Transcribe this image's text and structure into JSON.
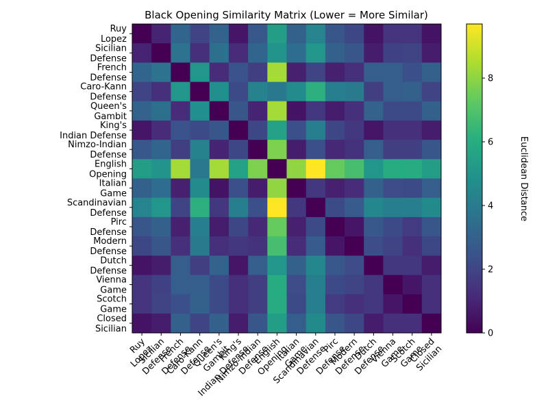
{
  "chart_data": {
    "type": "heatmap",
    "title": "Black Opening Similarity Matrix (Lower = More Similar)",
    "labels": [
      "Ruy Lopez",
      "Sicilian Defense",
      "French Defense",
      "Caro-Kann Defense",
      "Queen's Gambit",
      "King's Indian Defense",
      "Nimzo-Indian Defense",
      "English Opening",
      "Italian Game",
      "Scandinavian Defense",
      "Pirc Defense",
      "Modern Defense",
      "Dutch Defense",
      "Vienna Game",
      "Scotch Game",
      "Closed Sicilian"
    ],
    "matrix": [
      [
        0.0,
        1.0,
        3.2,
        2.0,
        3.1,
        0.6,
        2.7,
        5.4,
        3.0,
        4.4,
        2.6,
        2.1,
        0.5,
        1.5,
        1.5,
        0.5
      ],
      [
        1.0,
        0.0,
        3.7,
        1.3,
        3.6,
        1.2,
        3.2,
        5.0,
        3.5,
        5.1,
        3.0,
        2.6,
        0.8,
        1.9,
        2.0,
        0.8
      ],
      [
        3.2,
        3.7,
        0.0,
        5.1,
        1.2,
        2.5,
        1.8,
        8.4,
        0.9,
        2.0,
        0.9,
        1.3,
        2.9,
        2.9,
        2.4,
        3.0
      ],
      [
        2.0,
        1.3,
        5.1,
        0.0,
        4.8,
        2.2,
        4.3,
        3.9,
        4.7,
        6.2,
        4.2,
        4.0,
        1.8,
        2.9,
        3.0,
        2.0
      ],
      [
        3.1,
        3.6,
        1.2,
        4.8,
        0.0,
        2.6,
        1.0,
        8.4,
        0.5,
        1.6,
        0.8,
        1.3,
        3.1,
        2.2,
        2.2,
        3.0
      ],
      [
        0.6,
        1.2,
        2.5,
        2.2,
        2.6,
        0.0,
        2.1,
        5.6,
        2.4,
        4.2,
        2.1,
        1.6,
        0.6,
        1.3,
        1.3,
        0.8
      ],
      [
        2.7,
        3.2,
        1.8,
        4.3,
        1.0,
        2.1,
        0.0,
        7.8,
        0.8,
        2.4,
        1.1,
        1.4,
        2.9,
        1.8,
        1.8,
        2.6
      ],
      [
        5.4,
        5.0,
        8.4,
        3.9,
        8.4,
        5.6,
        7.8,
        0.0,
        8.1,
        9.7,
        7.4,
        6.8,
        5.1,
        6.0,
        6.0,
        5.4
      ],
      [
        3.0,
        3.5,
        0.9,
        4.7,
        0.5,
        2.4,
        0.8,
        8.1,
        0.0,
        1.6,
        0.9,
        1.2,
        3.0,
        2.3,
        2.2,
        2.9
      ],
      [
        4.4,
        5.1,
        2.0,
        6.2,
        1.6,
        4.2,
        2.4,
        9.7,
        1.6,
        0.0,
        2.2,
        2.8,
        4.5,
        4.2,
        4.2,
        4.6
      ],
      [
        2.6,
        3.0,
        0.9,
        4.2,
        0.8,
        2.1,
        1.1,
        7.4,
        0.9,
        2.2,
        0.0,
        0.6,
        2.7,
        2.2,
        1.7,
        2.6
      ],
      [
        2.1,
        2.6,
        1.3,
        4.0,
        1.3,
        1.6,
        1.4,
        6.8,
        1.2,
        2.8,
        0.6,
        0.0,
        2.3,
        2.0,
        1.3,
        2.1
      ],
      [
        0.5,
        0.8,
        2.9,
        1.8,
        3.1,
        0.6,
        2.9,
        5.1,
        3.0,
        4.5,
        2.7,
        2.3,
        0.0,
        1.6,
        1.6,
        0.8
      ],
      [
        1.5,
        1.9,
        2.9,
        2.9,
        2.2,
        1.3,
        1.8,
        6.0,
        2.3,
        4.2,
        2.2,
        2.0,
        1.6,
        0.0,
        0.6,
        1.3
      ],
      [
        1.5,
        2.0,
        2.4,
        3.0,
        2.2,
        1.3,
        1.8,
        6.0,
        2.2,
        4.2,
        1.7,
        1.3,
        1.6,
        0.6,
        0.0,
        1.3
      ],
      [
        0.5,
        0.8,
        3.0,
        2.0,
        3.0,
        0.8,
        2.6,
        5.4,
        2.9,
        4.6,
        2.6,
        2.1,
        0.8,
        1.3,
        1.3,
        0.0
      ]
    ],
    "vmin": 0,
    "vmax": 9.7,
    "colormap": "viridis",
    "colorbar_label": "Euclidean Distance",
    "colorbar_ticks": [
      "0",
      "2",
      "4",
      "6",
      "8"
    ]
  }
}
